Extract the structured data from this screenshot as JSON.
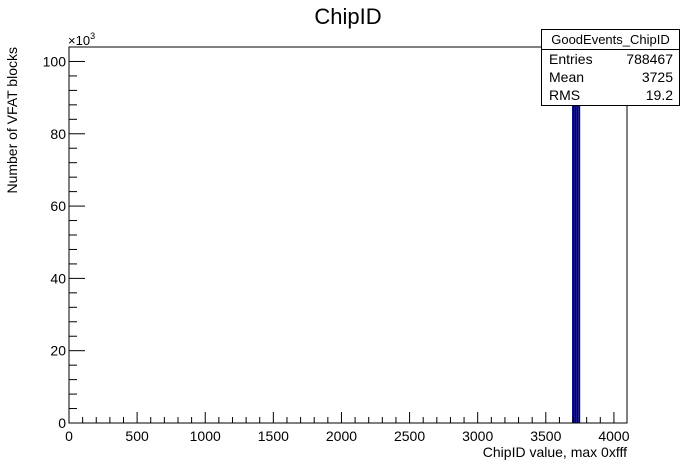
{
  "chart_data": {
    "type": "bar",
    "title": "ChipID",
    "xlabel": "ChipID value, max 0xfff",
    "ylabel": "Number of VFAT blocks",
    "y_multiplier_label": "×10",
    "y_multiplier_exponent": "3",
    "xlim": [
      0,
      4096
    ],
    "ylim": [
      0,
      104
    ],
    "xticks": [
      0,
      500,
      1000,
      1500,
      2000,
      2500,
      3000,
      3500,
      4000
    ],
    "yticks": [
      0,
      20,
      40,
      60,
      80,
      100
    ],
    "series": [
      {
        "x": [
          3700,
          3715,
          3730,
          3745
        ],
        "values": [
          104,
          104,
          104,
          104
        ]
      }
    ],
    "bar_color": "#000080",
    "legend": "none",
    "grid": false,
    "stats_box": {
      "name": "GoodEvents_ChipID",
      "placement": "top-right",
      "rows": [
        {
          "label": "Entries",
          "value": "788467"
        },
        {
          "label": "Mean",
          "value": "3725"
        },
        {
          "label": "RMS",
          "value": "19.2"
        }
      ]
    }
  }
}
